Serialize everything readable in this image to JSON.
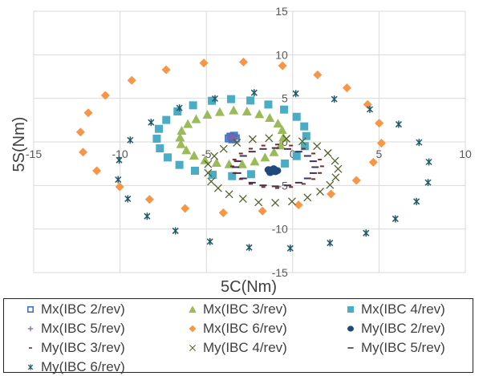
{
  "chart_data": {
    "type": "scatter",
    "title": "",
    "xlabel": "5C(Nm)",
    "ylabel": "5S(Nm)",
    "xlim": [
      -15,
      10
    ],
    "ylim": [
      -15,
      15
    ],
    "xticks": [
      -15,
      -10,
      -5,
      0,
      5,
      10
    ],
    "yticks": [
      -15,
      -10,
      -5,
      0,
      5,
      10,
      15
    ],
    "grid": true,
    "legend_position": "bottom",
    "series": [
      {
        "name": "Mx(IBC 2/rev)",
        "marker": "square-open",
        "color": "#4472c4",
        "x": [
          -3.6,
          -3.4,
          -3.3,
          -3.5,
          -3.7,
          -3.5
        ],
        "y": [
          0.6,
          0.7,
          0.4,
          0.3,
          0.4,
          0.5
        ]
      },
      {
        "name": "Mx(IBC 3/rev)",
        "marker": "triangle",
        "color": "#9bbb59",
        "x": [
          -6.52,
          -6.43,
          -6.07,
          -5.59,
          -4.94,
          -4.22,
          -3.42,
          -2.65,
          -1.93,
          -1.33,
          -0.85,
          -0.61,
          -0.54,
          -0.7,
          -1.08,
          -1.6,
          -2.2,
          -2.92,
          -3.68,
          -4.41,
          -5.08,
          -5.71,
          -6.16,
          -6.47
        ],
        "y": [
          0.52,
          1.29,
          2.06,
          2.61,
          3.13,
          3.44,
          3.62,
          3.5,
          3.19,
          2.76,
          2.12,
          1.38,
          0.52,
          -0.4,
          -1.17,
          -1.78,
          -2.24,
          -2.55,
          -2.55,
          -2.39,
          -2.09,
          -1.56,
          -0.95,
          -0.25
        ]
      },
      {
        "name": "Mx(IBC 4/rev)",
        "marker": "square",
        "color": "#4bacc6",
        "x": [
          -7.87,
          -7.75,
          -7.32,
          -6.67,
          -5.77,
          -4.68,
          -3.57,
          -2.45,
          -1.41,
          -0.5,
          0.23,
          0.67,
          0.79,
          0.7,
          0.23,
          -0.45,
          -2.41,
          -3.51,
          -4.63,
          -5.66,
          -6.56,
          -7.24,
          -7.69
        ],
        "y": [
          0.37,
          1.5,
          2.52,
          3.5,
          4.2,
          4.72,
          4.91,
          4.75,
          4.29,
          3.71,
          2.88,
          1.78,
          0.67,
          -0.49,
          -1.63,
          -2.48,
          -3.71,
          -3.93,
          -3.77,
          -3.31,
          -2.64,
          -1.78,
          -0.74
        ]
      },
      {
        "name": "Mx(IBC 5/rev)",
        "marker": "plus",
        "color": "#8064a2",
        "x": [
          -3.5,
          -3.4,
          -3.6,
          -3.45,
          -3.55
        ],
        "y": [
          0.45,
          0.55,
          0.5,
          0.35,
          0.6
        ]
      },
      {
        "name": "Mx(IBC 6/rev)",
        "marker": "diamond",
        "color": "#f79646",
        "x": [
          -12.29,
          -11.84,
          -10.85,
          -9.32,
          -7.33,
          -5.15,
          -2.85,
          -0.59,
          1.44,
          3.14,
          4.34,
          5.01,
          5.14,
          4.67,
          3.69,
          2.22,
          0.34,
          -1.75,
          -4.02,
          -6.23,
          -8.29,
          -10.02,
          -11.35,
          -12.14
        ],
        "y": [
          1.13,
          3.34,
          5.34,
          7.06,
          8.28,
          9.05,
          9.17,
          8.74,
          7.7,
          6.2,
          4.29,
          2.15,
          -0.15,
          -2.33,
          -4.42,
          -5.98,
          -7.24,
          -7.94,
          -8.13,
          -7.64,
          -6.6,
          -5.15,
          -3.31,
          -1.17
        ]
      },
      {
        "name": "My(IBC 2/rev)",
        "marker": "circle",
        "color": "#1f497d",
        "x": [
          -1.2,
          -1.0,
          -1.3,
          -1.1,
          -1.4,
          -0.9
        ],
        "y": [
          -3.3,
          -3.4,
          -3.5,
          -3.1,
          -3.2,
          -3.3
        ]
      },
      {
        "name": "My(IBC 3/rev)",
        "marker": "dash",
        "color": "#772c2a",
        "x": [
          1.7,
          1.57,
          1.2,
          0.63,
          -0.1,
          -0.9,
          -1.7,
          -2.43,
          -3.0,
          -3.37,
          -3.5,
          -3.37,
          -3.0,
          -2.43,
          -1.7,
          -0.9,
          -0.1,
          0.63,
          1.2,
          1.57
        ],
        "y": [
          -2.8,
          -2.03,
          -1.33,
          -0.78,
          -0.42,
          -0.3,
          -0.42,
          -0.78,
          -1.33,
          -2.03,
          -2.8,
          -3.57,
          -4.27,
          -4.82,
          -5.18,
          -5.3,
          -5.18,
          -4.82,
          -4.27,
          -3.57
        ]
      },
      {
        "name": "My(IBC 4/rev)",
        "marker": "x",
        "color": "#4f6228",
        "x": [
          -3.23,
          -2.32,
          -1.37,
          -0.36,
          0.56,
          1.41,
          2.04,
          2.45,
          2.63,
          2.49,
          2.16,
          1.59,
          0.86,
          -0.04,
          -1.01,
          -1.98,
          -2.88,
          -3.68,
          -4.32,
          -4.72,
          -4.9,
          -4.9,
          -4.54,
          -4.0
        ],
        "y": [
          -0.09,
          0.31,
          0.43,
          0.37,
          0.06,
          -0.49,
          -1.29,
          -2.18,
          -3.1,
          -4.08,
          -4.94,
          -5.71,
          -6.38,
          -6.84,
          -6.99,
          -6.93,
          -6.53,
          -6.01,
          -5.31,
          -4.54,
          -3.56,
          -2.55,
          -1.63,
          -0.8
        ]
      },
      {
        "name": "My(IBC 5/rev)",
        "marker": "longdash",
        "color": "#403151",
        "x": [
          1.3,
          1.19,
          0.86,
          0.35,
          -0.29,
          -1.0,
          -1.71,
          -2.35,
          -2.86,
          -3.19,
          -3.3,
          -3.19,
          -2.86,
          -2.35,
          -1.71,
          -1.0,
          -0.29,
          0.35,
          0.86,
          1.19
        ],
        "y": [
          -2.9,
          -2.22,
          -1.61,
          -1.12,
          -0.81,
          -0.7,
          -0.81,
          -1.12,
          -1.61,
          -2.22,
          -2.9,
          -3.58,
          -4.19,
          -4.68,
          -4.99,
          -5.1,
          -4.99,
          -4.68,
          -4.19,
          -3.58
        ]
      },
      {
        "name": "My(IBC 6/rev)",
        "marker": "star",
        "color": "#215968",
        "x": [
          -9.41,
          -8.2,
          -6.56,
          -4.5,
          -2.23,
          0.18,
          2.41,
          4.47,
          6.14,
          7.32,
          7.89,
          7.84,
          7.17,
          5.95,
          4.25,
          2.16,
          -0.14,
          -2.52,
          -4.79,
          -6.79,
          -8.43,
          -9.55,
          -10.11,
          -10.05
        ],
        "y": [
          0.21,
          2.24,
          3.9,
          4.97,
          5.64,
          5.55,
          4.91,
          3.74,
          2.02,
          -0.06,
          -2.3,
          -4.66,
          -6.84,
          -8.83,
          -10.46,
          -11.6,
          -12.21,
          -12.12,
          -11.44,
          -10.21,
          -8.53,
          -6.53,
          -4.33,
          -2.09
        ]
      }
    ]
  }
}
